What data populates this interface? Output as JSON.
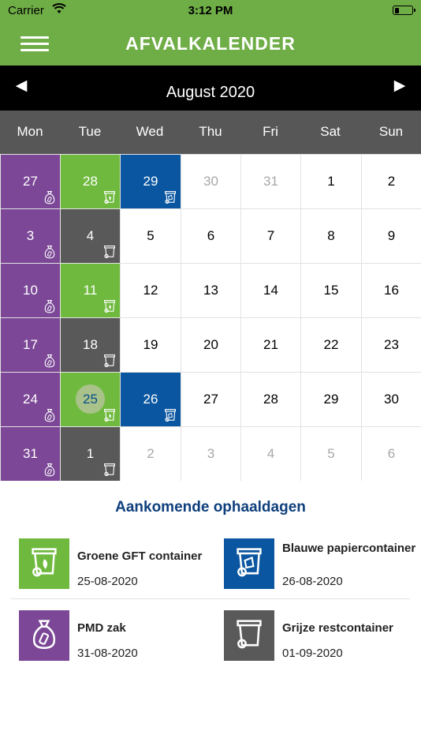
{
  "status_bar": {
    "carrier": "Carrier",
    "time": "3:12 PM",
    "battery_level": 0.15
  },
  "header": {
    "title": "AFVALKALENDER"
  },
  "calendar": {
    "month_label": "August 2020",
    "prev_arrow": "◀",
    "next_arrow": "▶",
    "weekdays": [
      "Mon",
      "Tue",
      "Wed",
      "Thu",
      "Fri",
      "Sat",
      "Sun"
    ],
    "today": "25",
    "weeks": [
      [
        {
          "day": "27",
          "type": "pmd"
        },
        {
          "day": "28",
          "type": "gft"
        },
        {
          "day": "29",
          "type": "papier"
        },
        {
          "day": "30",
          "muted": true
        },
        {
          "day": "31",
          "muted": true
        },
        {
          "day": "1"
        },
        {
          "day": "2"
        }
      ],
      [
        {
          "day": "3",
          "type": "pmd"
        },
        {
          "day": "4",
          "type": "rest"
        },
        {
          "day": "5"
        },
        {
          "day": "6"
        },
        {
          "day": "7"
        },
        {
          "day": "8"
        },
        {
          "day": "9"
        }
      ],
      [
        {
          "day": "10",
          "type": "pmd"
        },
        {
          "day": "11",
          "type": "gft"
        },
        {
          "day": "12"
        },
        {
          "day": "13"
        },
        {
          "day": "14"
        },
        {
          "day": "15"
        },
        {
          "day": "16"
        }
      ],
      [
        {
          "day": "17",
          "type": "pmd"
        },
        {
          "day": "18",
          "type": "rest"
        },
        {
          "day": "19"
        },
        {
          "day": "20"
        },
        {
          "day": "21"
        },
        {
          "day": "22"
        },
        {
          "day": "23"
        }
      ],
      [
        {
          "day": "24",
          "type": "pmd"
        },
        {
          "day": "25",
          "type": "gft",
          "today": true
        },
        {
          "day": "26",
          "type": "papier"
        },
        {
          "day": "27"
        },
        {
          "day": "28"
        },
        {
          "day": "29"
        },
        {
          "day": "30"
        }
      ],
      [
        {
          "day": "31",
          "type": "pmd"
        },
        {
          "day": "1",
          "type": "rest"
        },
        {
          "day": "2",
          "muted": true
        },
        {
          "day": "3",
          "muted": true
        },
        {
          "day": "4",
          "muted": true
        },
        {
          "day": "5",
          "muted": true
        },
        {
          "day": "6",
          "muted": true
        }
      ]
    ]
  },
  "waste_types": {
    "pmd": {
      "color": "#7b4796",
      "icon": "bag-icon"
    },
    "gft": {
      "color": "#6fba3e",
      "icon": "green-bin-icon"
    },
    "papier": {
      "color": "#0a56a0",
      "icon": "paper-bin-icon"
    },
    "rest": {
      "color": "#595959",
      "icon": "grey-bin-icon"
    }
  },
  "upcoming": {
    "title": "Aankomende ophaaldagen",
    "items": [
      {
        "name": "Groene GFT container",
        "date": "25-08-2020",
        "type": "gft"
      },
      {
        "name": "Blauwe papiercontainer",
        "date": "26-08-2020",
        "type": "papier"
      },
      {
        "name": "PMD zak",
        "date": "31-08-2020",
        "type": "pmd"
      },
      {
        "name": "Grijze restcontainer",
        "date": "01-09-2020",
        "type": "rest"
      }
    ]
  }
}
